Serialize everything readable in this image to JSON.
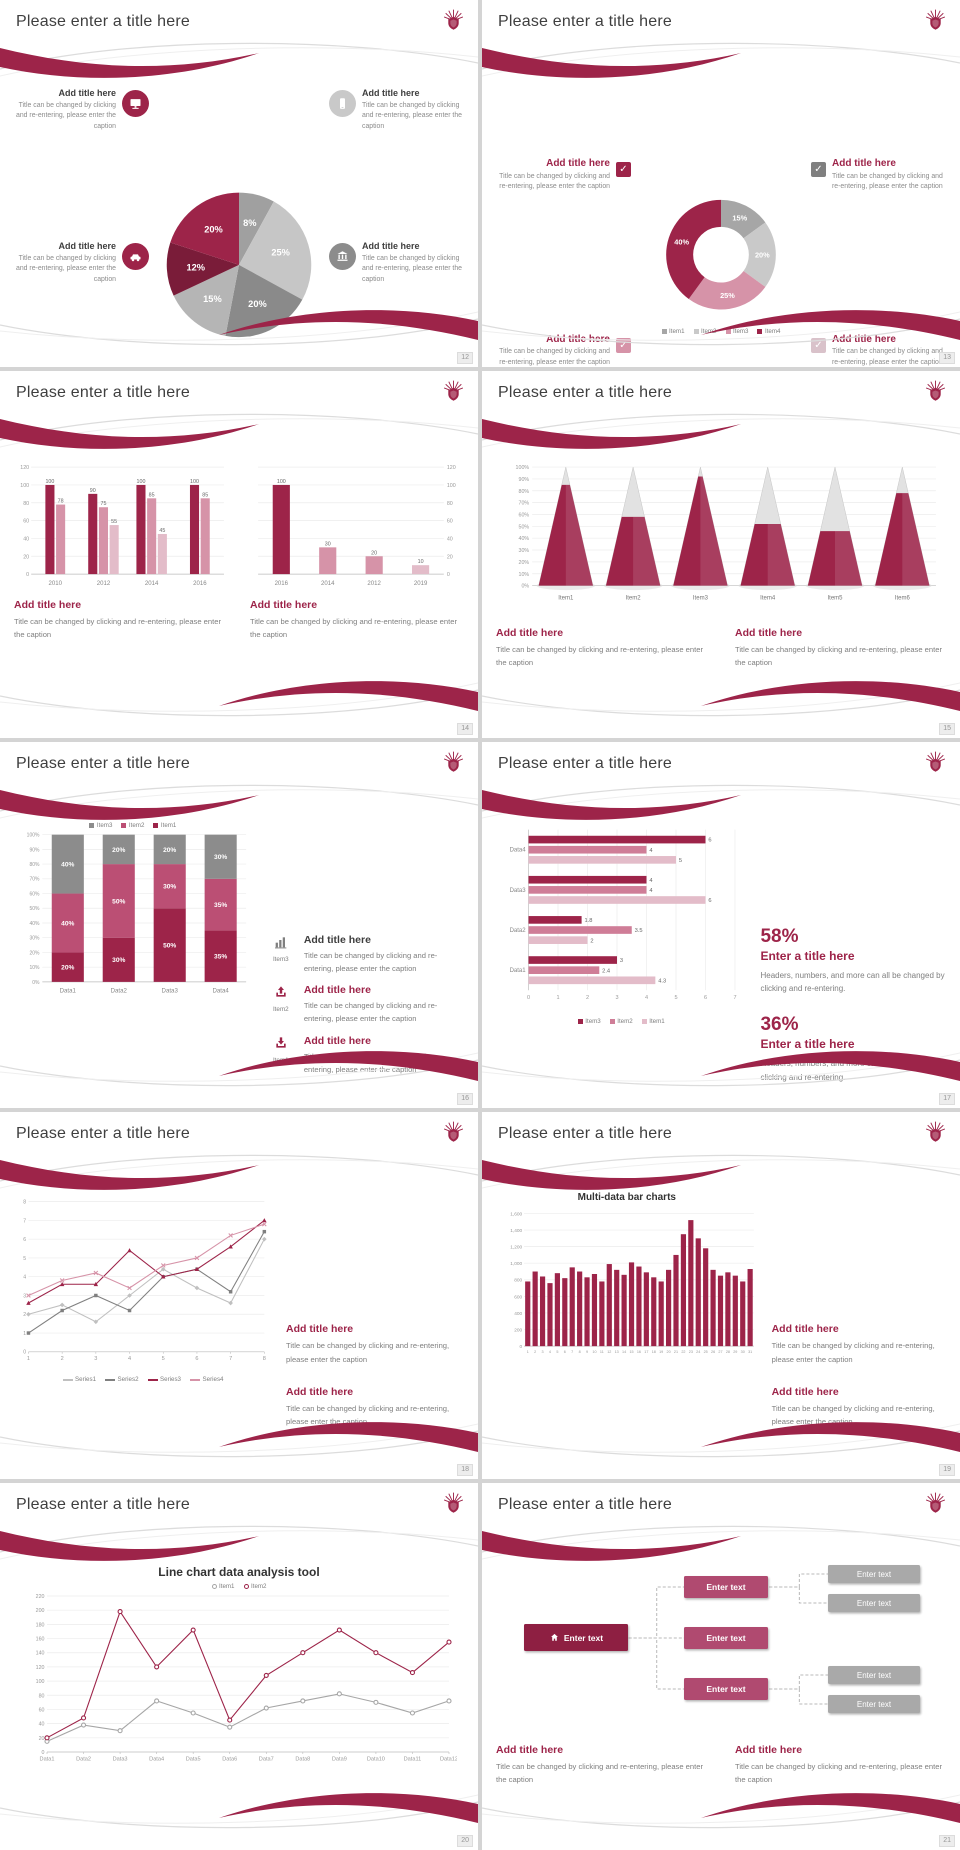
{
  "common": {
    "slide_title": "Please enter a title here",
    "add_title": "Add title here",
    "caption": "Title can be changed by clicking and re-entering, please enter the caption",
    "check_glyph": "✓"
  },
  "palette": {
    "maroon": "#9d2449",
    "dark_maroon": "#7a1c39",
    "rose": "#bb4f74",
    "pink": "#d693a8",
    "light_pink": "#e3bcc9",
    "gray_dark": "#7f7f7f",
    "gray": "#a6a6a6",
    "gray_light": "#c9c9c9",
    "title_text": "#3f3f3f",
    "caption_text": "#7f7f7f"
  },
  "slides": [
    {
      "page": "12",
      "title": "Please enter a title here",
      "type": "pie-callouts",
      "chart": 0,
      "callouts": [
        {
          "title": "Add title here",
          "caption": "Title can be changed by clicking and re-entering, please enter the caption",
          "icon": "monitor-icon",
          "icon_bg": "#9d2449",
          "side": "left"
        },
        {
          "title": "Add title here",
          "caption": "Title can be changed by clicking and re-entering, please enter the caption",
          "icon": "smartphone-icon",
          "icon_bg": "#c9c9c9",
          "side": "right"
        },
        {
          "title": "Add title here",
          "caption": "Title can be changed by clicking and re-entering, please enter the caption",
          "icon": "car-icon",
          "icon_bg": "#9d2449",
          "side": "left"
        },
        {
          "title": "Add title here",
          "caption": "Title can be changed by clicking and re-entering, please enter the caption",
          "icon": "bank-icon",
          "icon_bg": "#8c8c8c",
          "side": "right"
        },
        {
          "title": "Add title here",
          "caption": "Title can be changed by clicking and re-entering, please enter the caption",
          "icon": "printer-icon",
          "icon_bg": "#d693a8",
          "side": "left"
        },
        {
          "title": "Add title here",
          "caption": "Title can be changed by clicking and re-entering, please enter the caption",
          "icon": "bicycle-icon",
          "icon_bg": "#7f7f7f",
          "side": "right"
        }
      ]
    },
    {
      "page": "13",
      "title": "Please enter a title here",
      "type": "donut-callouts",
      "chart": 1,
      "callouts": [
        {
          "title": "Add title here",
          "caption": "Title can be changed by clicking and re-entering, please enter the caption",
          "check_color": "#9d2449",
          "side": "left"
        },
        {
          "title": "Add title here",
          "caption": "Title can be changed by clicking and re-entering, please enter the caption",
          "check_color": "#7f7f7f",
          "side": "right"
        },
        {
          "title": "Add title here",
          "caption": "Title can be changed by clicking and re-entering, please enter the caption",
          "check_color": "#d693a8",
          "side": "left"
        },
        {
          "title": "Add title here",
          "caption": "Title can be changed by clicking and re-entering, please enter the caption",
          "check_color": "#d9c2ca",
          "side": "right"
        }
      ]
    },
    {
      "page": "14",
      "title": "Please enter a title here",
      "type": "two-bars",
      "charts": [
        2,
        3
      ],
      "blocks": [
        {
          "title": "Add title here",
          "caption": "Title can be changed by clicking and re-entering, please enter the caption"
        },
        {
          "title": "Add title here",
          "caption": "Title can be changed by clicking and re-entering, please enter the caption"
        }
      ]
    },
    {
      "page": "15",
      "title": "Please enter a title here",
      "type": "cones",
      "chart": 4,
      "blocks": [
        {
          "title": "Add title here",
          "caption": "Title can be changed by clicking and re-entering, please enter the caption"
        },
        {
          "title": "Add title here",
          "caption": "Title can be changed by clicking and re-entering, please enter the caption"
        }
      ]
    },
    {
      "page": "16",
      "title": "Please enter a title here",
      "type": "stacked-rows",
      "chart": 5,
      "rows": [
        {
          "icon": "bar-chart-icon",
          "icon_label": "Item3",
          "icon_color": "#7f7f7f",
          "title": "Add title here",
          "title_color": "#3e3e3e",
          "caption": "Title can be changed by clicking and re-entering, please enter the caption"
        },
        {
          "icon": "upload-icon",
          "icon_label": "Item2",
          "icon_color": "#9d2449",
          "title": "Add title here",
          "title_color": "#9d2449",
          "caption": "Title can be changed by clicking and re-entering, please enter the caption"
        },
        {
          "icon": "download-icon",
          "icon_label": "Item1",
          "icon_color": "#9d2449",
          "title": "Add title here",
          "title_color": "#9d2449",
          "caption": "Title can be changed by clicking and re-entering, please enter the caption"
        }
      ]
    },
    {
      "page": "17",
      "title": "Please enter a title here",
      "type": "hbar-stats",
      "chart": 6,
      "stats": [
        {
          "value": "58%",
          "title": "Enter a title here",
          "caption": "Headers, numbers, and more can all be changed by clicking and re-entering."
        },
        {
          "value": "36%",
          "title": "Enter a title here",
          "caption": "Headers, numbers, and more can all be changed by clicking and re-entering."
        }
      ]
    },
    {
      "page": "18",
      "title": "Please enter a title here",
      "type": "line-blocks",
      "chart": 7,
      "blocks": [
        {
          "title": "Add title here",
          "caption": "Title can be changed by clicking and re-entering, please enter the caption"
        },
        {
          "title": "Add title here",
          "caption": "Title can be changed by clicking and re-entering, please enter the caption"
        }
      ]
    },
    {
      "page": "19",
      "title": "Please enter a title here",
      "type": "dense-blocks",
      "chart": 8,
      "blocks": [
        {
          "title": "Add title here",
          "caption": "Title can be changed by clicking and re-entering, please enter the caption"
        },
        {
          "title": "Add title here",
          "caption": "Title can be changed by clicking and re-entering, please enter the caption"
        }
      ]
    },
    {
      "page": "20",
      "title": "Please enter a title here",
      "type": "big-line",
      "chart": 9
    },
    {
      "page": "21",
      "title": "Please enter a title here",
      "type": "flow",
      "flow": {
        "root": {
          "label": "Enter text",
          "icon": "home-icon",
          "color": "#8e1f42"
        },
        "mid_color": "#b04a70",
        "mid": [
          {
            "label": "Enter text"
          },
          {
            "label": "Enter text"
          },
          {
            "label": "Enter text"
          }
        ],
        "leaf_color": "#a9a9a9",
        "leaves": [
          {
            "label": "Enter text"
          },
          {
            "label": "Enter text"
          },
          {
            "label": "Enter text"
          },
          {
            "label": "Enter text"
          }
        ]
      },
      "blocks": [
        {
          "title": "Add title here",
          "caption": "Title can be changed by clicking and re-entering, please enter the caption"
        },
        {
          "title": "Add title here",
          "caption": "Title can be changed by clicking and re-entering, please enter the caption"
        }
      ]
    }
  ],
  "chart_data": [
    {
      "slide": "12",
      "type": "pie",
      "labels": [
        "8%",
        "25%",
        "20%",
        "15%",
        "12%",
        "20%"
      ],
      "values": [
        8,
        25,
        20,
        15,
        12,
        20
      ],
      "colors": [
        "#a0a0a0",
        "#c6c6c6",
        "#8a8a8a",
        "#b5b5b5",
        "#7a1c39",
        "#9d2449"
      ]
    },
    {
      "slide": "13",
      "type": "pie",
      "subtype": "donut",
      "labels": [
        "15%",
        "20%",
        "25%",
        "40%"
      ],
      "values": [
        15,
        20,
        25,
        40
      ],
      "colors": [
        "#a6a6a6",
        "#c9c9c9",
        "#d693a8",
        "#9d2449"
      ],
      "legend": [
        {
          "label": "Item1",
          "color": "#a6a6a6"
        },
        {
          "label": "Item2",
          "color": "#c9c9c9"
        },
        {
          "label": "Item3",
          "color": "#d693a8"
        },
        {
          "label": "Item4",
          "color": "#9d2449"
        }
      ]
    },
    {
      "slide": "14",
      "type": "bar",
      "subtype": "grouped",
      "ymax": 120,
      "yticks": [
        "0",
        "20",
        "40",
        "60",
        "80",
        "100",
        "120"
      ],
      "categories": [
        "2010",
        "2012",
        "2014",
        "2016"
      ],
      "groups": [
        [
          100,
          78
        ],
        [
          90,
          75,
          55
        ],
        [
          100,
          85,
          45
        ],
        [
          100,
          85
        ]
      ],
      "bar_colors": [
        "#9d2449",
        "#d693a8",
        "#e3bcc9"
      ]
    },
    {
      "slide": "14",
      "type": "bar",
      "subtype": "simple",
      "ymax": 120,
      "yticks": [
        "0",
        "20",
        "40",
        "60",
        "80",
        "100",
        "120"
      ],
      "bars": [
        {
          "label": "2016",
          "value": 100,
          "color": "#9d2449"
        },
        {
          "label": "2014",
          "value": 30,
          "color": "#d693a8"
        },
        {
          "label": "2012",
          "value": 20,
          "color": "#d693a8"
        },
        {
          "label": "2019",
          "value": 10,
          "color": "#e3bcc9"
        }
      ]
    },
    {
      "slide": "15",
      "type": "bar",
      "subtype": "cone",
      "ymax": 100,
      "cone_color": "#9d2449",
      "back_color": "#e2e2e2",
      "yticks": [
        "0%",
        "10%",
        "20%",
        "30%",
        "40%",
        "50%",
        "60%",
        "70%",
        "80%",
        "90%",
        "100%"
      ],
      "items": [
        {
          "label": "Item1",
          "value": 85
        },
        {
          "label": "Item2",
          "value": 58
        },
        {
          "label": "Item3",
          "value": 92
        },
        {
          "label": "Item4",
          "value": 52
        },
        {
          "label": "Item5",
          "value": 46
        },
        {
          "label": "Item6",
          "value": 78
        }
      ]
    },
    {
      "slide": "16",
      "type": "bar",
      "subtype": "stacked",
      "categories": [
        "Data1",
        "Data2",
        "Data3",
        "Data4"
      ],
      "yticks": [
        "0%",
        "10%",
        "20%",
        "30%",
        "40%",
        "50%",
        "60%",
        "70%",
        "80%",
        "90%",
        "100%"
      ],
      "series": [
        {
          "name": "Item1",
          "color": "#9d2449",
          "values": [
            20,
            30,
            50,
            35
          ]
        },
        {
          "name": "Item2",
          "color": "#bb4f74",
          "values": [
            40,
            50,
            30,
            35
          ]
        },
        {
          "name": "Item3",
          "color": "#8c8c8c",
          "values": [
            40,
            20,
            20,
            30
          ]
        }
      ],
      "legend_order": [
        "Item3",
        "Item2",
        "Item1"
      ]
    },
    {
      "slide": "17",
      "type": "bar",
      "subtype": "horizontal",
      "xmax": 7,
      "xticks": [
        "0",
        "1",
        "2",
        "3",
        "4",
        "5",
        "6",
        "7"
      ],
      "categories": [
        "Data4",
        "Data3",
        "Data2",
        "Data1"
      ],
      "series": [
        {
          "name": "Item3",
          "color": "#9d2449",
          "values": [
            6,
            4,
            1.8,
            3
          ]
        },
        {
          "name": "Item2",
          "color": "#cf7d97",
          "values": [
            4,
            4,
            3.5,
            2.4
          ]
        },
        {
          "name": "Item1",
          "color": "#e3bcc9",
          "values": [
            5,
            6,
            2,
            4.3
          ]
        }
      ],
      "legend_order": [
        "Item3",
        "Item2",
        "Item1"
      ]
    },
    {
      "slide": "18",
      "type": "line",
      "ymax": 8,
      "x_labels": [
        "1",
        "2",
        "3",
        "4",
        "5",
        "6",
        "7",
        "8"
      ],
      "yticks": [
        "0",
        "1",
        "2",
        "3",
        "4",
        "5",
        "6",
        "7",
        "8"
      ],
      "series": [
        {
          "name": "Series1",
          "color": "#c0c0c0",
          "marker": "diamond",
          "values": [
            2,
            2.5,
            1.6,
            3,
            4.4,
            3.4,
            2.6,
            6
          ]
        },
        {
          "name": "Series2",
          "color": "#808080",
          "marker": "square",
          "values": [
            1,
            2.2,
            3,
            2.2,
            4,
            4.4,
            3.2,
            6.4
          ]
        },
        {
          "name": "Series3",
          "color": "#9d2449",
          "marker": "triangle",
          "values": [
            2.6,
            3.6,
            3.6,
            5.4,
            4,
            4.4,
            5.6,
            7
          ]
        },
        {
          "name": "Series4",
          "color": "#d693a8",
          "marker": "x",
          "values": [
            3,
            3.8,
            4.2,
            3.4,
            4.6,
            5,
            6.2,
            6.8
          ]
        }
      ]
    },
    {
      "slide": "19",
      "type": "bar",
      "subtype": "dense",
      "title": "Multi-data bar charts",
      "ymax": 1600,
      "color": "#9d2449",
      "yticks": [
        "0",
        "200",
        "400",
        "600",
        "800",
        "1,000",
        "1,200",
        "1,400",
        "1,600"
      ],
      "x_labels": [
        "1",
        "2",
        "3",
        "4",
        "5",
        "6",
        "7",
        "8",
        "9",
        "10",
        "11",
        "12",
        "13",
        "14",
        "15",
        "16",
        "17",
        "18",
        "19",
        "20",
        "21",
        "22",
        "23",
        "24",
        "25",
        "26",
        "27",
        "28",
        "29",
        "30",
        "31"
      ],
      "values": [
        780,
        900,
        840,
        760,
        880,
        820,
        950,
        900,
        830,
        870,
        780,
        990,
        920,
        860,
        1010,
        960,
        890,
        830,
        780,
        920,
        1100,
        1350,
        1520,
        1300,
        1180,
        920,
        850,
        890,
        850,
        780,
        930
      ]
    },
    {
      "slide": "20",
      "type": "line",
      "title": "Line chart data analysis tool",
      "ymax": 220,
      "x_labels": [
        "Data1",
        "Data2",
        "Data3",
        "Data4",
        "Data5",
        "Data6",
        "Data7",
        "Data8",
        "Data9",
        "Data10",
        "Data11",
        "Data12"
      ],
      "yticks": [
        "0",
        "20",
        "40",
        "60",
        "80",
        "100",
        "120",
        "140",
        "160",
        "180",
        "200",
        "220"
      ],
      "series": [
        {
          "name": "Item1",
          "color": "#a6a6a6",
          "marker": "circle",
          "values": [
            15,
            38,
            30,
            72,
            55,
            35,
            62,
            72,
            82,
            70,
            55,
            72
          ]
        },
        {
          "name": "Item2",
          "color": "#9d2449",
          "marker": "circle",
          "values": [
            20,
            48,
            198,
            120,
            172,
            45,
            108,
            140,
            172,
            140,
            112,
            155
          ]
        }
      ]
    }
  ]
}
